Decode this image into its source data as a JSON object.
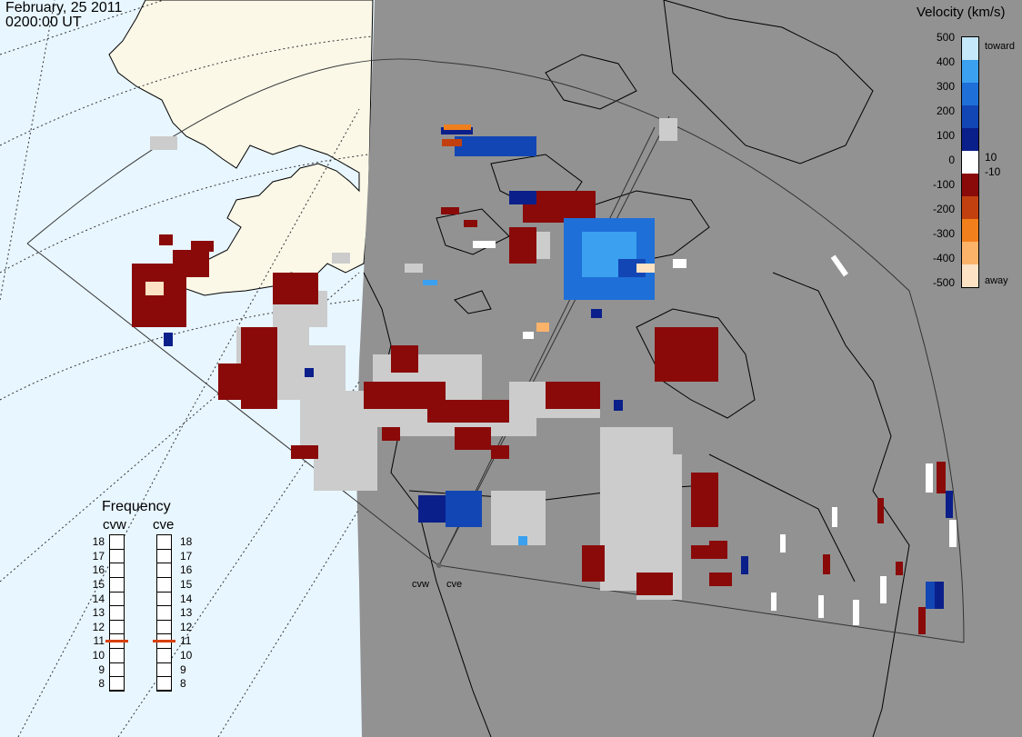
{
  "header": {
    "date": "February, 25 2011",
    "time": "0200:00 UT"
  },
  "colorbar": {
    "title": "Velocity (km/s)",
    "toward_label": "toward",
    "away_label": "away",
    "ticks": [
      "500",
      "400",
      "300",
      "200",
      "100",
      "0",
      "-100",
      "-200",
      "-300",
      "-400",
      "-500"
    ],
    "near_zero": [
      "10",
      "-10"
    ],
    "colors": [
      "#fde2c4",
      "#fbb36a",
      "#f07f1c",
      "#c2400f",
      "#8a0a0a",
      "#ffffff",
      "#0a1f8a",
      "#1346b5",
      "#1e6fd8",
      "#3aa0ef",
      "#c5e8fb"
    ]
  },
  "frequency": {
    "title": "Frequency",
    "radars": [
      {
        "code": "cvw",
        "value": 11
      },
      {
        "code": "cve",
        "value": 11
      }
    ],
    "scale": [
      "18",
      "17",
      "16",
      "15",
      "14",
      "13",
      "12",
      "11",
      "10",
      "9",
      "8"
    ]
  },
  "radars": {
    "west_label": "cvw",
    "east_label": "cve"
  },
  "map_colors": {
    "ocean": "#e8f6ff",
    "land": "#fbf8e8",
    "night": "#929292",
    "groundscatter": "#cccccc"
  }
}
